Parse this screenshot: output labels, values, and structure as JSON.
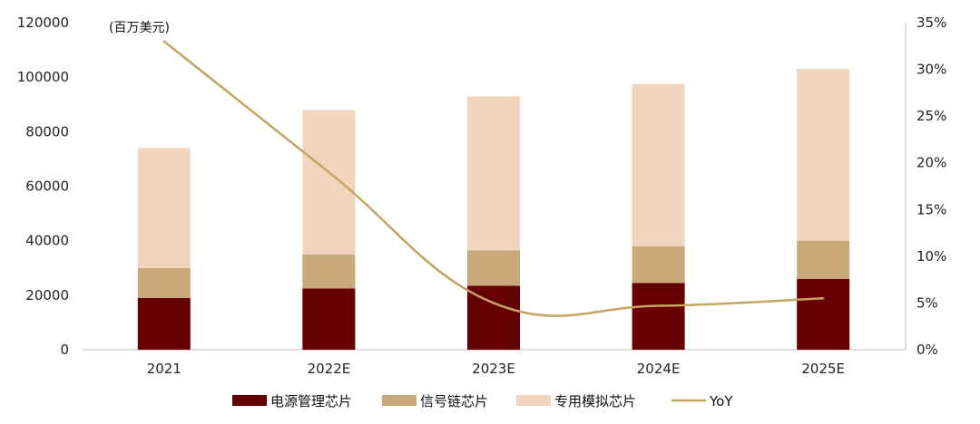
{
  "chart_data": {
    "type": "bar",
    "stacked": true,
    "unit_note": "(百万美元)",
    "categories": [
      "2021",
      "2022E",
      "2023E",
      "2024E",
      "2025E"
    ],
    "series": [
      {
        "name": "电源管理芯片",
        "values": [
          19000,
          22500,
          23500,
          24500,
          26000
        ],
        "color": "#650000"
      },
      {
        "name": "信号链芯片",
        "values": [
          11000,
          12500,
          13000,
          13500,
          14000
        ],
        "color": "#c9a87b"
      },
      {
        "name": "专用模拟芯片",
        "values": [
          44000,
          53000,
          56500,
          59500,
          63000
        ],
        "color": "#f2d5bd"
      }
    ],
    "line_series": {
      "name": "YoY",
      "values": [
        0.33,
        0.19,
        0.05,
        0.047,
        0.055
      ],
      "color": "#c4a45f",
      "axis": "right"
    },
    "y_left": {
      "min": 0,
      "max": 120000,
      "ticks": [
        0,
        20000,
        40000,
        60000,
        80000,
        100000,
        120000
      ]
    },
    "y_right": {
      "min": 0,
      "max": 0.35,
      "ticks": [
        "0%",
        "5%",
        "10%",
        "15%",
        "20%",
        "25%",
        "30%",
        "35%"
      ]
    },
    "grid": false,
    "legend_position": "bottom"
  }
}
